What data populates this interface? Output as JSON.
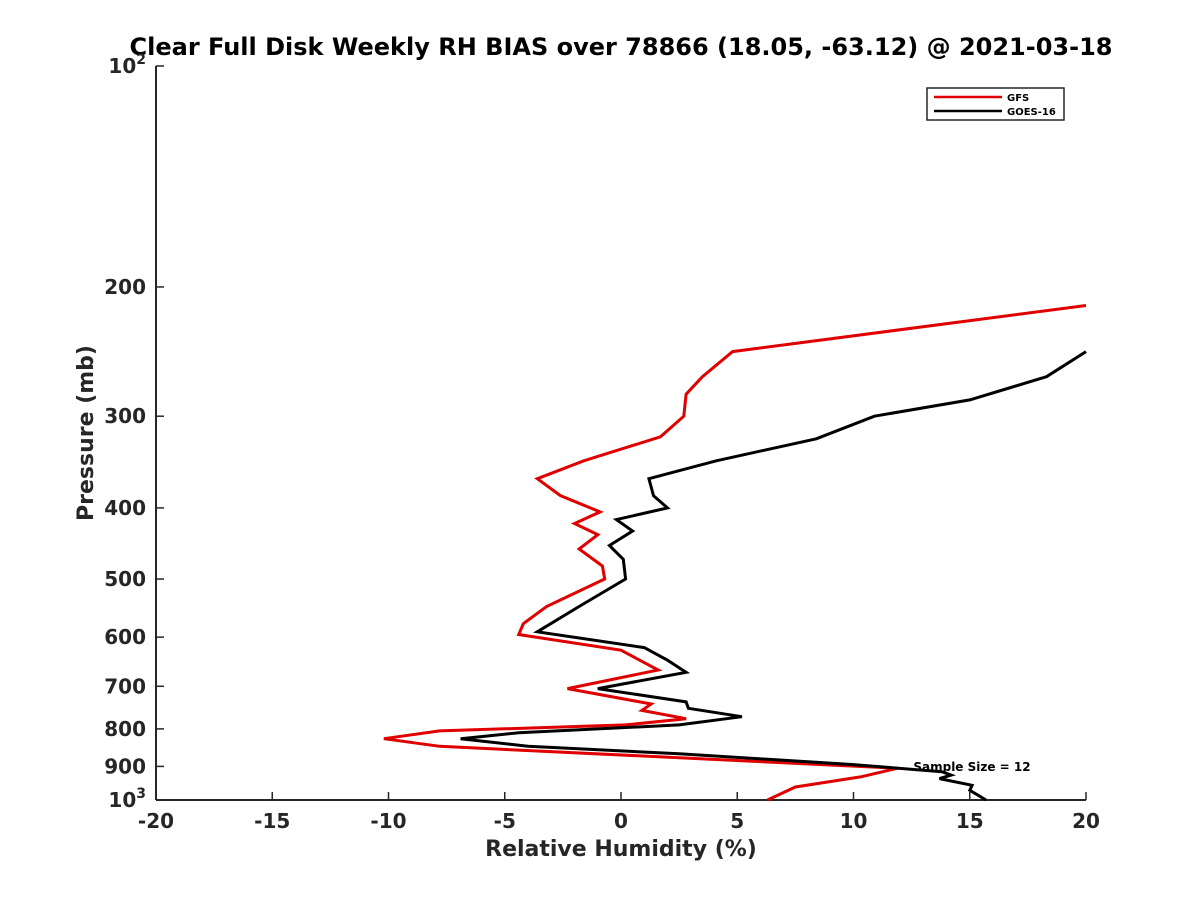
{
  "chart_data": {
    "type": "line",
    "title": "Clear Full Disk Weekly RH BIAS over 78866 (18.05, -63.12) @ 2021-03-18",
    "xlabel": "Relative Humidity (%)",
    "ylabel": "Pressure (mb)",
    "xlim": [
      -20,
      20
    ],
    "ylim": [
      100,
      1000
    ],
    "y_scale": "log",
    "y_reversed": true,
    "grid": false,
    "legend_position": "top-right",
    "x_ticks": [
      "-20",
      "-15",
      "-10",
      "-5",
      "0",
      "5",
      "10",
      "15",
      "20"
    ],
    "y_ticks": [
      {
        "value": 100,
        "base": "10",
        "exp": "2"
      },
      {
        "value": 200,
        "label": "200"
      },
      {
        "value": 300,
        "label": "300"
      },
      {
        "value": 400,
        "label": "400"
      },
      {
        "value": 500,
        "label": "500"
      },
      {
        "value": 600,
        "label": "600"
      },
      {
        "value": 700,
        "label": "700"
      },
      {
        "value": 800,
        "label": "800"
      },
      {
        "value": 900,
        "label": "900"
      },
      {
        "value": 1000,
        "base": "10",
        "exp": "3"
      }
    ],
    "series": [
      {
        "name": "GFS",
        "color": "#e00000",
        "points": [
          [
            20,
            212
          ],
          [
            4.8,
            245
          ],
          [
            3.5,
            265
          ],
          [
            2.8,
            280
          ],
          [
            2.7,
            300
          ],
          [
            1.7,
            320
          ],
          [
            -1.6,
            345
          ],
          [
            -3.6,
            365
          ],
          [
            -2.6,
            385
          ],
          [
            -0.9,
            405
          ],
          [
            -2.0,
            420
          ],
          [
            -1.0,
            435
          ],
          [
            -1.8,
            455
          ],
          [
            -0.8,
            480
          ],
          [
            -0.7,
            500
          ],
          [
            -3.2,
            545
          ],
          [
            -4.2,
            575
          ],
          [
            -4.4,
            595
          ],
          [
            0.0,
            625
          ],
          [
            1.6,
            665
          ],
          [
            -2.3,
            705
          ],
          [
            1.3,
            740
          ],
          [
            0.9,
            755
          ],
          [
            2.8,
            775
          ],
          [
            0.2,
            790
          ],
          [
            -7.8,
            805
          ],
          [
            -10.2,
            825
          ],
          [
            -7.8,
            845
          ],
          [
            11.9,
            905
          ],
          [
            10.3,
            930
          ],
          [
            7.5,
            960
          ],
          [
            6.3,
            1000
          ]
        ]
      },
      {
        "name": "GOES-16",
        "color": "#000000",
        "points": [
          [
            20,
            245
          ],
          [
            18.3,
            265
          ],
          [
            15.0,
            285
          ],
          [
            10.9,
            300
          ],
          [
            8.4,
            322
          ],
          [
            4.1,
            345
          ],
          [
            1.2,
            365
          ],
          [
            1.4,
            385
          ],
          [
            2.0,
            400
          ],
          [
            -0.2,
            415
          ],
          [
            0.5,
            430
          ],
          [
            -0.5,
            450
          ],
          [
            0.1,
            470
          ],
          [
            0.2,
            500
          ],
          [
            -1.8,
            545
          ],
          [
            -3.6,
            590
          ],
          [
            1.0,
            620
          ],
          [
            2.0,
            645
          ],
          [
            2.8,
            670
          ],
          [
            -1.0,
            705
          ],
          [
            2.8,
            735
          ],
          [
            2.9,
            750
          ],
          [
            5.2,
            770
          ],
          [
            2.5,
            790
          ],
          [
            -4.4,
            810
          ],
          [
            -6.9,
            825
          ],
          [
            -4.0,
            845
          ],
          [
            2.5,
            865
          ],
          [
            10.0,
            895
          ],
          [
            13.8,
            915
          ],
          [
            14.2,
            925
          ],
          [
            13.7,
            935
          ],
          [
            15.1,
            955
          ],
          [
            15.0,
            970
          ],
          [
            15.7,
            1000
          ]
        ]
      }
    ],
    "annotation": "Sample Size = 12"
  }
}
